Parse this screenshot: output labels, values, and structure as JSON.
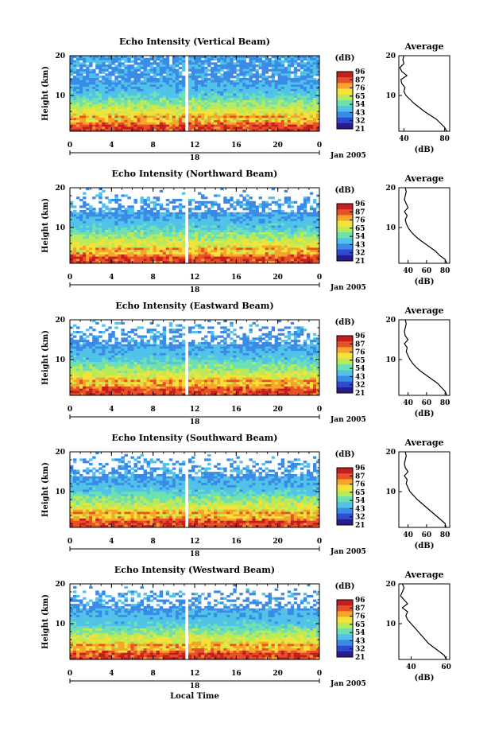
{
  "panels": [
    {
      "title": "Echo Intensity (Vertical Beam)",
      "cb_ticks": [
        "96",
        "87",
        "76",
        "65",
        "54",
        "43",
        "32",
        "21"
      ],
      "profile_ticks": [
        "40",
        "80"
      ],
      "profile_range": [
        35,
        85
      ],
      "profile": [
        82,
        80,
        76,
        72,
        66,
        60,
        55,
        50,
        46,
        42,
        40,
        41,
        38,
        37,
        43,
        38,
        36,
        40,
        39,
        40
      ]
    },
    {
      "title": "Echo Intensity (Northward Beam)",
      "cb_ticks": [
        "96",
        "87",
        "76",
        "65",
        "54",
        "43",
        "32",
        "21"
      ],
      "profile_ticks": [
        "40",
        "60",
        "80"
      ],
      "profile_range": [
        30,
        85
      ],
      "profile": [
        82,
        80,
        74,
        70,
        64,
        58,
        52,
        47,
        43,
        40,
        38,
        37,
        39,
        36,
        40,
        38,
        36,
        37,
        38,
        37
      ]
    },
    {
      "title": "Echo Intensity (Eastward Beam)",
      "cb_ticks": [
        "96",
        "87",
        "76",
        "65",
        "54",
        "43",
        "32",
        "21"
      ],
      "profile_ticks": [
        "40",
        "60",
        "80"
      ],
      "profile_range": [
        30,
        85
      ],
      "profile": [
        82,
        80,
        76,
        72,
        66,
        60,
        54,
        49,
        45,
        42,
        40,
        38,
        39,
        36,
        40,
        37,
        36,
        37,
        38,
        37
      ]
    },
    {
      "title": "Echo Intensity (Southward Beam)",
      "cb_ticks": [
        "96",
        "87",
        "76",
        "65",
        "54",
        "43",
        "32",
        "21"
      ],
      "profile_ticks": [
        "40",
        "60",
        "80"
      ],
      "profile_range": [
        30,
        85
      ],
      "profile": [
        81,
        80,
        75,
        70,
        65,
        60,
        55,
        50,
        46,
        42,
        40,
        38,
        39,
        36,
        40,
        37,
        36,
        37,
        38,
        37
      ]
    },
    {
      "title": "Echo Intensity (Westward Beam)",
      "cb_ticks": [
        "96",
        "87",
        "76",
        "65",
        "54",
        "43",
        "32",
        "21"
      ],
      "profile_ticks": [
        "40",
        "60"
      ],
      "profile_range": [
        33,
        62
      ],
      "profile": [
        60,
        59,
        56,
        53,
        50,
        48,
        46,
        44,
        42,
        40,
        38,
        37,
        38,
        35,
        38,
        36,
        34,
        35,
        36,
        35
      ]
    }
  ],
  "common": {
    "ylabel": "Height (km)",
    "y_ticks": [
      "20",
      "10"
    ],
    "x_ticks": [
      "0",
      "4",
      "8",
      "12",
      "16",
      "20",
      "0"
    ],
    "date_marker": "18",
    "date_label": "Jan 2005",
    "cb_unit": "(dB)",
    "avg_title": "Average",
    "avg_xlabel": "(dB)",
    "avg_y_ticks": [
      "20",
      "10"
    ],
    "xlabel": "Local Time"
  },
  "chart_data": {
    "type": "heatmap",
    "x_range": [
      0,
      24
    ],
    "x_tick_values": [
      0,
      4,
      8,
      12,
      16,
      20,
      24
    ],
    "y_range": [
      1,
      20
    ],
    "colorbar_range": [
      21,
      96
    ],
    "profile_heights_km": [
      1,
      2,
      3,
      4,
      5,
      6,
      7,
      8,
      9,
      10,
      11,
      12,
      13,
      14,
      15,
      16,
      17,
      18,
      19,
      20
    ]
  },
  "colors": {
    "colormap": [
      "#2b1a8c",
      "#2f4bd0",
      "#3a8ae8",
      "#52c3e8",
      "#6fe0b0",
      "#b9ea5a",
      "#f2e23a",
      "#f7a52a",
      "#e8502a",
      "#c41e1e"
    ],
    "white_gap": "#ffffff",
    "ink": "#000000"
  }
}
